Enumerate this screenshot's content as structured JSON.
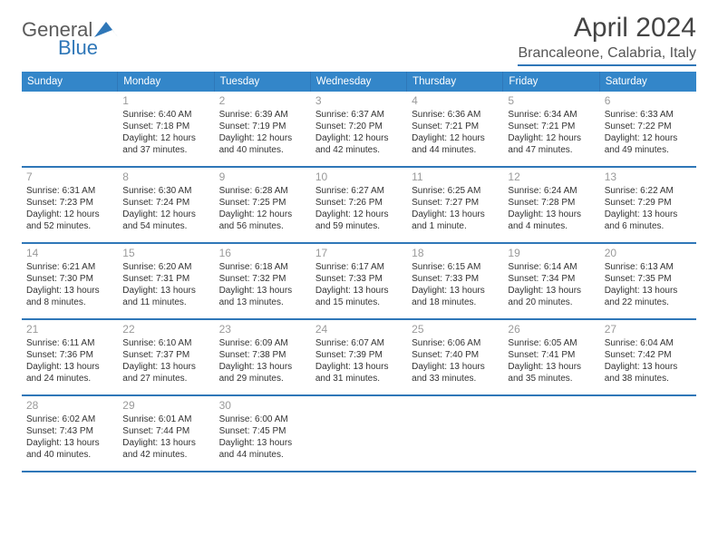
{
  "logo": {
    "word1": "General",
    "word2": "Blue"
  },
  "title": "April 2024",
  "location": "Brancaleone, Calabria, Italy",
  "colors": {
    "accent": "#3386c9",
    "accent_border": "#2f77b8",
    "logo_grey": "#5b5b5b",
    "text": "#333333",
    "daynum": "#9a9a9a",
    "bg": "#ffffff"
  },
  "weekdays": [
    "Sunday",
    "Monday",
    "Tuesday",
    "Wednesday",
    "Thursday",
    "Friday",
    "Saturday"
  ],
  "grid_offset": 1,
  "days_in_month": 30,
  "days": [
    {
      "n": 1,
      "sr": "6:40 AM",
      "ss": "7:18 PM",
      "dl": "12 hours and 37 minutes."
    },
    {
      "n": 2,
      "sr": "6:39 AM",
      "ss": "7:19 PM",
      "dl": "12 hours and 40 minutes."
    },
    {
      "n": 3,
      "sr": "6:37 AM",
      "ss": "7:20 PM",
      "dl": "12 hours and 42 minutes."
    },
    {
      "n": 4,
      "sr": "6:36 AM",
      "ss": "7:21 PM",
      "dl": "12 hours and 44 minutes."
    },
    {
      "n": 5,
      "sr": "6:34 AM",
      "ss": "7:21 PM",
      "dl": "12 hours and 47 minutes."
    },
    {
      "n": 6,
      "sr": "6:33 AM",
      "ss": "7:22 PM",
      "dl": "12 hours and 49 minutes."
    },
    {
      "n": 7,
      "sr": "6:31 AM",
      "ss": "7:23 PM",
      "dl": "12 hours and 52 minutes."
    },
    {
      "n": 8,
      "sr": "6:30 AM",
      "ss": "7:24 PM",
      "dl": "12 hours and 54 minutes."
    },
    {
      "n": 9,
      "sr": "6:28 AM",
      "ss": "7:25 PM",
      "dl": "12 hours and 56 minutes."
    },
    {
      "n": 10,
      "sr": "6:27 AM",
      "ss": "7:26 PM",
      "dl": "12 hours and 59 minutes."
    },
    {
      "n": 11,
      "sr": "6:25 AM",
      "ss": "7:27 PM",
      "dl": "13 hours and 1 minute."
    },
    {
      "n": 12,
      "sr": "6:24 AM",
      "ss": "7:28 PM",
      "dl": "13 hours and 4 minutes."
    },
    {
      "n": 13,
      "sr": "6:22 AM",
      "ss": "7:29 PM",
      "dl": "13 hours and 6 minutes."
    },
    {
      "n": 14,
      "sr": "6:21 AM",
      "ss": "7:30 PM",
      "dl": "13 hours and 8 minutes."
    },
    {
      "n": 15,
      "sr": "6:20 AM",
      "ss": "7:31 PM",
      "dl": "13 hours and 11 minutes."
    },
    {
      "n": 16,
      "sr": "6:18 AM",
      "ss": "7:32 PM",
      "dl": "13 hours and 13 minutes."
    },
    {
      "n": 17,
      "sr": "6:17 AM",
      "ss": "7:33 PM",
      "dl": "13 hours and 15 minutes."
    },
    {
      "n": 18,
      "sr": "6:15 AM",
      "ss": "7:33 PM",
      "dl": "13 hours and 18 minutes."
    },
    {
      "n": 19,
      "sr": "6:14 AM",
      "ss": "7:34 PM",
      "dl": "13 hours and 20 minutes."
    },
    {
      "n": 20,
      "sr": "6:13 AM",
      "ss": "7:35 PM",
      "dl": "13 hours and 22 minutes."
    },
    {
      "n": 21,
      "sr": "6:11 AM",
      "ss": "7:36 PM",
      "dl": "13 hours and 24 minutes."
    },
    {
      "n": 22,
      "sr": "6:10 AM",
      "ss": "7:37 PM",
      "dl": "13 hours and 27 minutes."
    },
    {
      "n": 23,
      "sr": "6:09 AM",
      "ss": "7:38 PM",
      "dl": "13 hours and 29 minutes."
    },
    {
      "n": 24,
      "sr": "6:07 AM",
      "ss": "7:39 PM",
      "dl": "13 hours and 31 minutes."
    },
    {
      "n": 25,
      "sr": "6:06 AM",
      "ss": "7:40 PM",
      "dl": "13 hours and 33 minutes."
    },
    {
      "n": 26,
      "sr": "6:05 AM",
      "ss": "7:41 PM",
      "dl": "13 hours and 35 minutes."
    },
    {
      "n": 27,
      "sr": "6:04 AM",
      "ss": "7:42 PM",
      "dl": "13 hours and 38 minutes."
    },
    {
      "n": 28,
      "sr": "6:02 AM",
      "ss": "7:43 PM",
      "dl": "13 hours and 40 minutes."
    },
    {
      "n": 29,
      "sr": "6:01 AM",
      "ss": "7:44 PM",
      "dl": "13 hours and 42 minutes."
    },
    {
      "n": 30,
      "sr": "6:00 AM",
      "ss": "7:45 PM",
      "dl": "13 hours and 44 minutes."
    }
  ],
  "labels": {
    "sunrise_prefix": "Sunrise: ",
    "sunset_prefix": "Sunset: ",
    "daylight_prefix": "Daylight: "
  }
}
